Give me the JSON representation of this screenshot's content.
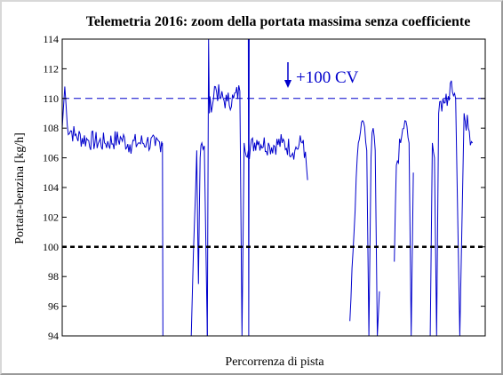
{
  "chart_data": {
    "type": "line",
    "title": "Telemetria 2016: zoom della portata massima senza coefficiente",
    "xlabel": "Percorrenza di pista",
    "ylabel": "Portata-benzina  [kg/h]",
    "ylim": [
      94,
      114
    ],
    "xlim": [
      0,
      1
    ],
    "yticks": [
      "94",
      "96",
      "98",
      "100",
      "102",
      "104",
      "106",
      "108",
      "110",
      "112",
      "114"
    ],
    "xticks": [],
    "grid": false,
    "annotation": "+100 CV",
    "reference_lines": [
      {
        "y": 110,
        "style": "dashed",
        "color": "#0000cc"
      },
      {
        "y": 100,
        "style": "dashed",
        "color": "#000000"
      }
    ],
    "series": [
      {
        "color": "#0000cc",
        "segments": [
          {
            "x": [
              0.0,
              0.006,
              0.012,
              0.03,
              0.06,
              0.1,
              0.14,
              0.16,
              0.18,
              0.2,
              0.22,
              0.235,
              0.237,
              0.238
            ],
            "y": [
              108.0,
              110.8,
              108.2,
              107.5,
              107.2,
              107.0,
              107.3,
              106.9,
              107.0,
              107.1,
              106.8,
              107.1,
              107.0,
              94.0
            ]
          },
          {
            "x": [
              0.305,
              0.31,
              0.318,
              0.322,
              0.326,
              0.33,
              0.336,
              0.343
            ],
            "y": [
              94.0,
              99.5,
              106.5,
              97.5,
              106.0,
              107.0,
              106.8,
              94.0
            ]
          },
          {
            "x": [
              0.343,
              0.346,
              0.348,
              0.35,
              0.355,
              0.36,
              0.375,
              0.39,
              0.405,
              0.42
            ],
            "y": [
              94.0,
              114.0,
              109.0,
              110.0,
              109.5,
              110.8,
              110.0,
              109.8,
              110.0,
              110.5
            ]
          },
          {
            "x": [
              0.42,
              0.425,
              0.43,
              0.44,
              0.46,
              0.49,
              0.52,
              0.55,
              0.57,
              0.58
            ],
            "y": [
              110.5,
              94.0,
              107.0,
              106.5,
              107.2,
              106.8,
              107.0,
              106.5,
              107.2,
              104.5
            ]
          },
          {
            "x": [
              0.44,
              0.441,
              0.442
            ],
            "y": [
              114.0,
              94.0,
              114.0
            ]
          },
          {
            "x": [
              0.68,
              0.69,
              0.7,
              0.71,
              0.72,
              0.725,
              0.73,
              0.735,
              0.74,
              0.745,
              0.75
            ],
            "y": [
              95.0,
              101.0,
              107.0,
              108.5,
              106.5,
              94.0,
              106.0,
              108.0,
              106.5,
              94.0,
              97.0
            ]
          },
          {
            "x": [
              0.785,
              0.79,
              0.8,
              0.81,
              0.82,
              0.825,
              0.83
            ],
            "y": [
              99.0,
              105.5,
              107.0,
              108.5,
              107.0,
              94.0,
              105.0
            ]
          },
          {
            "x": [
              0.87,
              0.875,
              0.88,
              0.885,
              0.89,
              0.9,
              0.91,
              0.92,
              0.93,
              0.94,
              0.95,
              0.96,
              0.97
            ],
            "y": [
              94.0,
              107.0,
              106.0,
              94.0,
              109.0,
              110.0,
              109.5,
              111.2,
              110.0,
              94.0,
              109.0,
              108.0,
              107.0
            ]
          }
        ]
      }
    ]
  }
}
